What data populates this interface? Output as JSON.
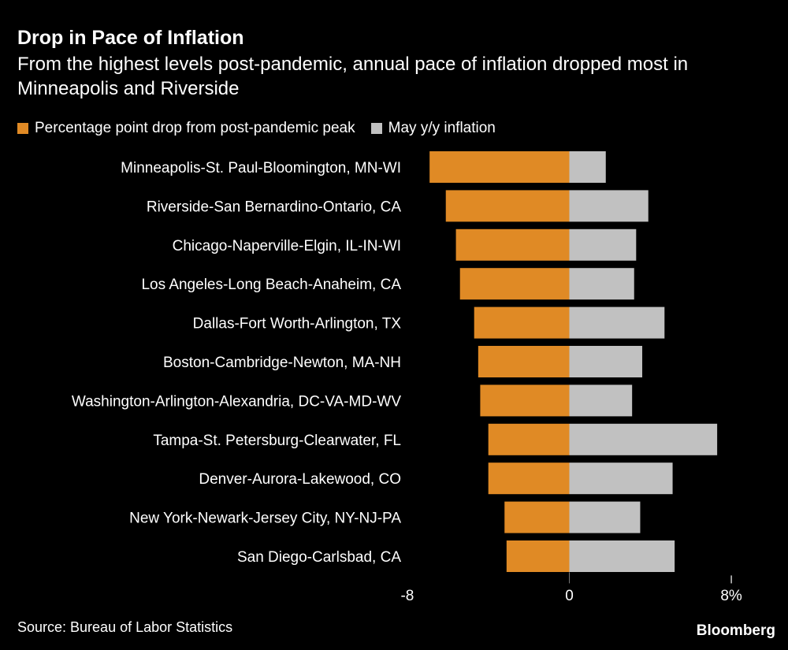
{
  "title": "Drop in Pace of Inflation",
  "subtitle": "From the highest levels post-pandemic, annual pace of inflation dropped most in Minneapolis and Riverside",
  "source": "Source: Bureau of Labor Statistics",
  "logo": "Bloomberg",
  "colors": {
    "drop": "#e08a25",
    "inflation": "#c1c1c1"
  },
  "chart_data": {
    "type": "bar",
    "orientation": "horizontal",
    "stacked": "diverging",
    "title": "Drop in Pace of Inflation",
    "categories": [
      "Minneapolis-St. Paul-Bloomington, MN-WI",
      "Riverside-San Bernardino-Ontario, CA",
      "Chicago-Naperville-Elgin, IL-IN-WI",
      "Los Angeles-Long Beach-Anaheim, CA",
      "Dallas-Fort Worth-Arlington, TX",
      "Boston-Cambridge-Newton, MA-NH",
      "Washington-Arlington-Alexandria, DC-VA-MD-WV",
      "Tampa-St. Petersburg-Clearwater, FL",
      "Denver-Aurora-Lakewood, CO",
      "New York-Newark-Jersey City, NY-NJ-PA",
      "San Diego-Carlsbad, CA"
    ],
    "series": [
      {
        "name": "Percentage point drop from post-pandemic peak",
        "values": [
          -6.9,
          -6.1,
          -5.6,
          -5.4,
          -4.7,
          -4.5,
          -4.4,
          -4.0,
          -4.0,
          -3.2,
          -3.1
        ]
      },
      {
        "name": "May y/y inflation",
        "values": [
          1.8,
          3.9,
          3.3,
          3.2,
          4.7,
          3.6,
          3.1,
          7.3,
          5.1,
          3.5,
          5.2
        ]
      }
    ],
    "xlim": [
      -8,
      8
    ],
    "xticks": [
      "-8",
      "0",
      "8%"
    ],
    "legend": "top-left",
    "grid": false
  }
}
